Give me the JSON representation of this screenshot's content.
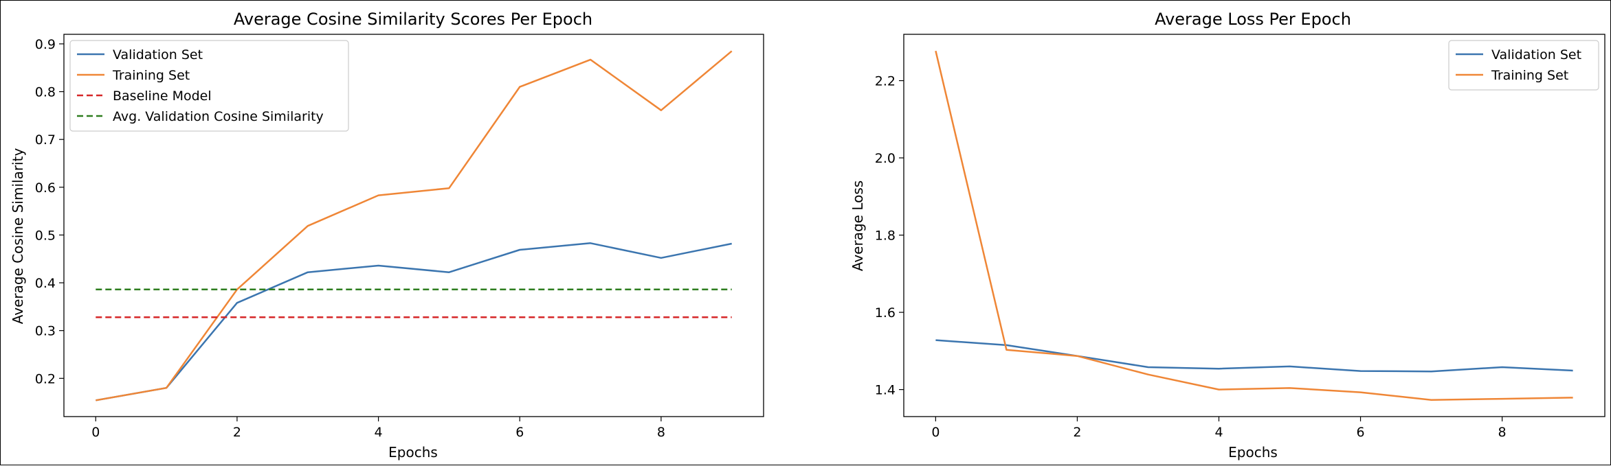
{
  "chart_data": [
    {
      "type": "line",
      "title": "Average Cosine Similarity Scores Per Epoch",
      "xlabel": "Epochs",
      "ylabel": "Average Cosine Similarity",
      "x": [
        0,
        1,
        2,
        3,
        4,
        5,
        6,
        7,
        8,
        9
      ],
      "xlim": [
        -0.45,
        9.45
      ],
      "ylim": [
        0.12,
        0.92
      ],
      "xticks": [
        0,
        2,
        4,
        6,
        8
      ],
      "yticks": [
        0.2,
        0.3,
        0.4,
        0.5,
        0.6,
        0.7,
        0.8,
        0.9
      ],
      "ytick_labels": [
        "0.2",
        "0.3",
        "0.4",
        "0.5",
        "0.6",
        "0.7",
        "0.8",
        "0.9"
      ],
      "grid": false,
      "legend_position": "top-left",
      "series": [
        {
          "name": "Validation Set",
          "color": "#3b75af",
          "dash": "solid",
          "values": [
            0.154,
            0.18,
            0.358,
            0.422,
            0.436,
            0.422,
            0.469,
            0.483,
            0.452,
            0.482
          ]
        },
        {
          "name": "Training Set",
          "color": "#ef8636",
          "dash": "solid",
          "values": [
            0.154,
            0.18,
            0.386,
            0.519,
            0.583,
            0.598,
            0.81,
            0.867,
            0.761,
            0.885
          ]
        },
        {
          "name": "Baseline Model",
          "color": "#d62728",
          "dash": "dashed",
          "values": [
            0.328,
            0.328,
            0.328,
            0.328,
            0.328,
            0.328,
            0.328,
            0.328,
            0.328,
            0.328
          ]
        },
        {
          "name": "Avg. Validation Cosine Similarity",
          "color": "#2e7d1f",
          "dash": "dashed",
          "values": [
            0.386,
            0.386,
            0.386,
            0.386,
            0.386,
            0.386,
            0.386,
            0.386,
            0.386,
            0.386
          ]
        }
      ]
    },
    {
      "type": "line",
      "title": "Average Loss Per Epoch",
      "xlabel": "Epochs",
      "ylabel": "Average Loss",
      "x": [
        0,
        1,
        2,
        3,
        4,
        5,
        6,
        7,
        8,
        9
      ],
      "xlim": [
        -0.45,
        9.45
      ],
      "ylim": [
        1.33,
        2.32
      ],
      "xticks": [
        0,
        2,
        4,
        6,
        8
      ],
      "yticks": [
        1.4,
        1.6,
        1.8,
        2.0,
        2.2
      ],
      "ytick_labels": [
        "1.4",
        "1.6",
        "1.8",
        "2.0",
        "2.2"
      ],
      "grid": false,
      "legend_position": "top-right",
      "series": [
        {
          "name": "Validation Set",
          "color": "#3b75af",
          "dash": "solid",
          "values": [
            1.528,
            1.515,
            1.487,
            1.458,
            1.454,
            1.46,
            1.448,
            1.447,
            1.458,
            1.449
          ]
        },
        {
          "name": "Training Set",
          "color": "#ef8636",
          "dash": "solid",
          "values": [
            2.277,
            1.503,
            1.487,
            1.439,
            1.4,
            1.404,
            1.393,
            1.373,
            1.376,
            1.379
          ]
        }
      ]
    }
  ]
}
